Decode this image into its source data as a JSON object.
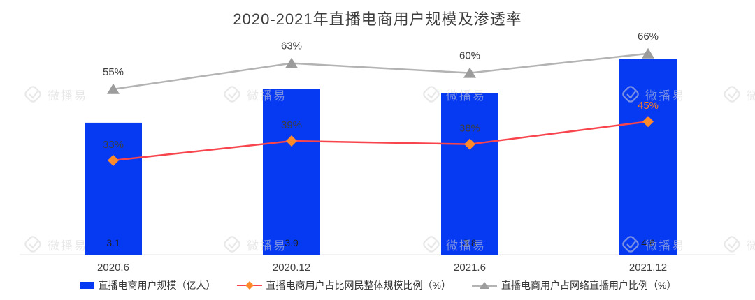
{
  "title": "2020-2021年直播电商用户规模及渗透率",
  "watermark": {
    "text": "微播易"
  },
  "chart_data": {
    "type": "bar",
    "combo": "bar+line",
    "title": "2020-2021年直播电商用户规模及渗透率",
    "categories": [
      "2020.6",
      "2020.12",
      "2021.6",
      "2021.12"
    ],
    "series": [
      {
        "name": "直播电商用户规模（亿人）",
        "type": "bar",
        "values": [
          3.1,
          3.9,
          3.8,
          4.6
        ],
        "value_labels": [
          "3.1",
          "3.9",
          "3.8",
          "4.6"
        ],
        "color": "#0639f2",
        "axis": "left"
      },
      {
        "name": "直播电商用户占比网民整体规模比例（%）",
        "type": "line",
        "marker": "diamond",
        "values": [
          33,
          39,
          38,
          45
        ],
        "value_labels": [
          "33%",
          "39%",
          "38%",
          "45%"
        ],
        "line_color": "#f8454d",
        "marker_color": "#ff8a2a",
        "label_colors": [
          "#3d3d3d",
          "#3d3d3d",
          "#3d3d3d",
          "#ff7c1f"
        ],
        "axis": "percent"
      },
      {
        "name": "直播电商用户占网络直播用户比例（%）",
        "type": "line",
        "marker": "triangle",
        "values": [
          55,
          63,
          60,
          66
        ],
        "value_labels": [
          "55%",
          "63%",
          "60%",
          "66%"
        ],
        "line_color": "#b3b3b3",
        "marker_color": "#9c9c9c",
        "label_colors": [
          "#3d3d3d",
          "#3d3d3d",
          "#3d3d3d",
          "#3d3d3d"
        ],
        "axis": "percent"
      }
    ],
    "legend_position": "bottom",
    "grid": false,
    "axes_visible": false
  }
}
